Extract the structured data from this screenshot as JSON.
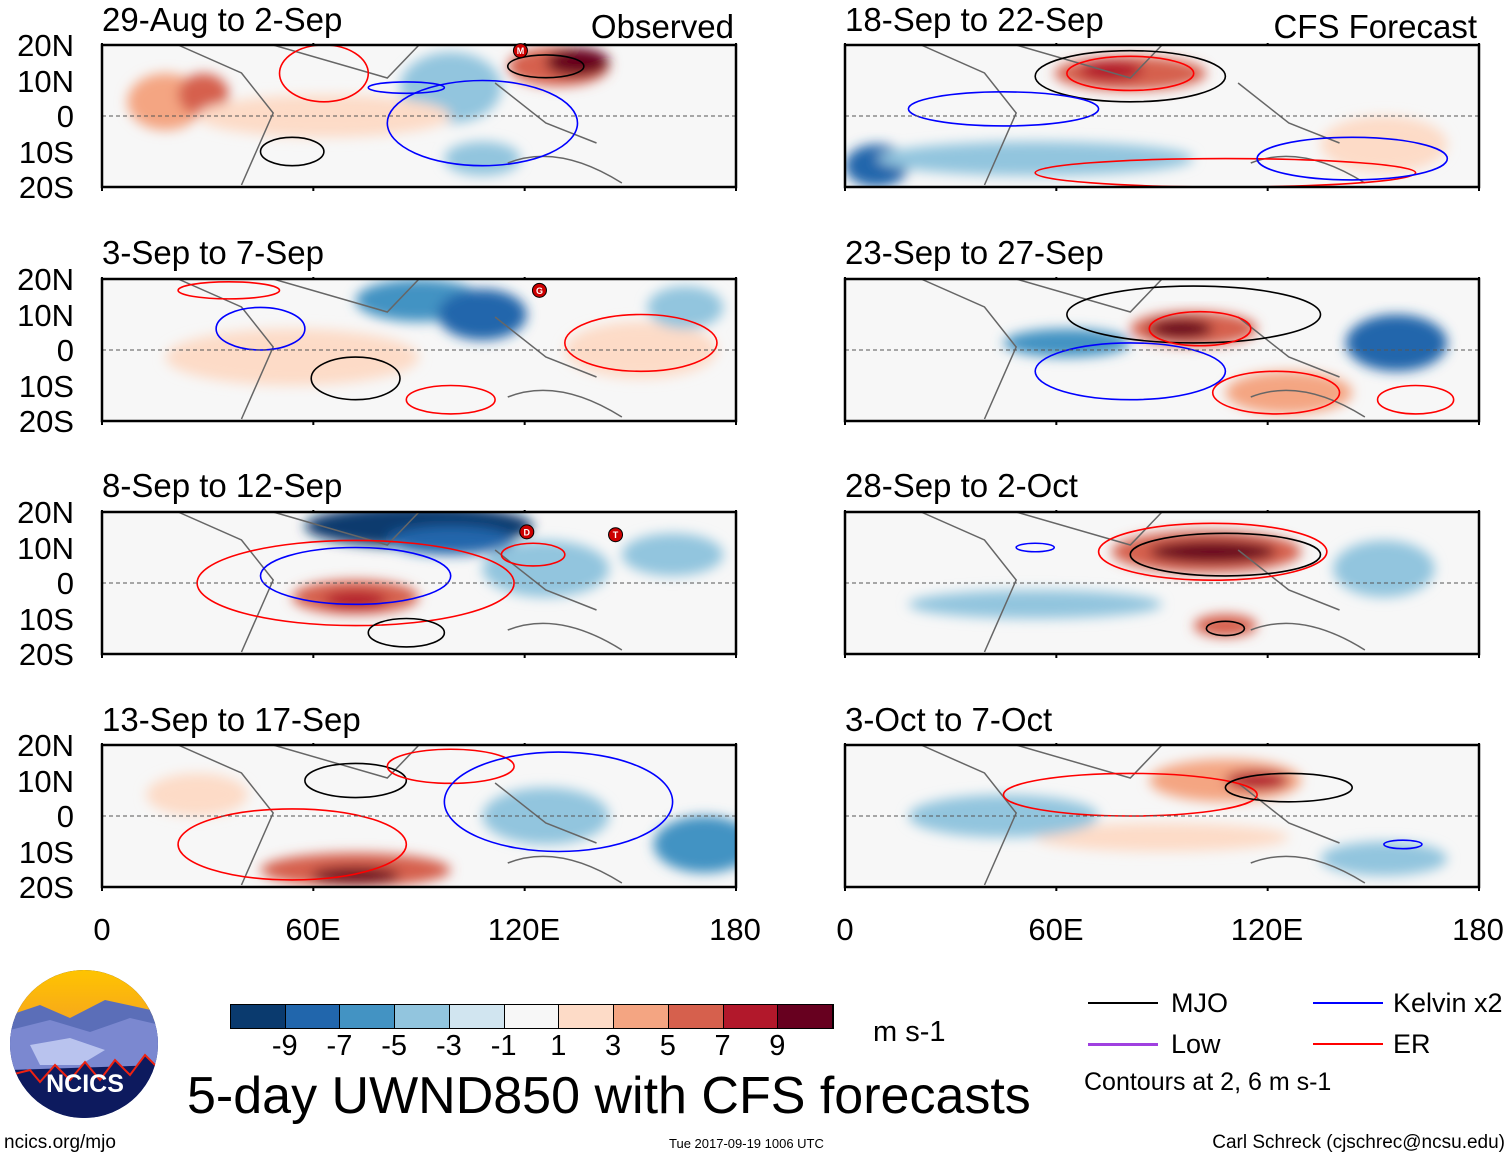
{
  "panels": [
    {
      "title": "29-Aug to 2-Sep",
      "tag": "Observed",
      "storms": [
        "M"
      ]
    },
    {
      "title": "3-Sep to 7-Sep",
      "tag": "",
      "storms": [
        "G"
      ]
    },
    {
      "title": "8-Sep to 12-Sep",
      "tag": "",
      "storms": [
        "D",
        "T"
      ]
    },
    {
      "title": "13-Sep to 17-Sep",
      "tag": "",
      "storms": []
    },
    {
      "title": "18-Sep to 22-Sep",
      "tag": "CFS Forecast",
      "storms": []
    },
    {
      "title": "23-Sep to 27-Sep",
      "tag": "",
      "storms": []
    },
    {
      "title": "28-Sep to 2-Oct",
      "tag": "",
      "storms": []
    },
    {
      "title": "3-Oct to 7-Oct",
      "tag": "",
      "storms": []
    }
  ],
  "lat_labels": [
    "20N",
    "10N",
    "0",
    "10S",
    "20S"
  ],
  "lon_labels": [
    "0",
    "60E",
    "120E",
    "180"
  ],
  "colorbar": {
    "labels": [
      "-9",
      "-7",
      "-5",
      "-3",
      "-1",
      "1",
      "3",
      "5",
      "7",
      "9"
    ],
    "colors": [
      "#0a3a6e",
      "#2166ac",
      "#4393c3",
      "#92c5de",
      "#d1e5f0",
      "#f7f7f7",
      "#fddbc7",
      "#f4a582",
      "#d6604d",
      "#b2182b",
      "#67001f"
    ],
    "units": "m s-1"
  },
  "legend": {
    "items": [
      {
        "label": "MJO",
        "color": "#000000"
      },
      {
        "label": "Kelvin x2",
        "color": "#0000ff"
      },
      {
        "label": "Low",
        "color": "#a040e0"
      },
      {
        "label": "ER",
        "color": "#ff0000"
      }
    ],
    "contours_note": "Contours at 2, 6 m s-1"
  },
  "logo": {
    "text": "NCICS"
  },
  "title": "5-day UWND850 with CFS forecasts",
  "footer": {
    "url": "ncics.org/mjo",
    "timestamp": "Tue 2017-09-19 1006 UTC",
    "credit": "Carl Schreck (cjschrec@ncsu.edu)"
  }
}
